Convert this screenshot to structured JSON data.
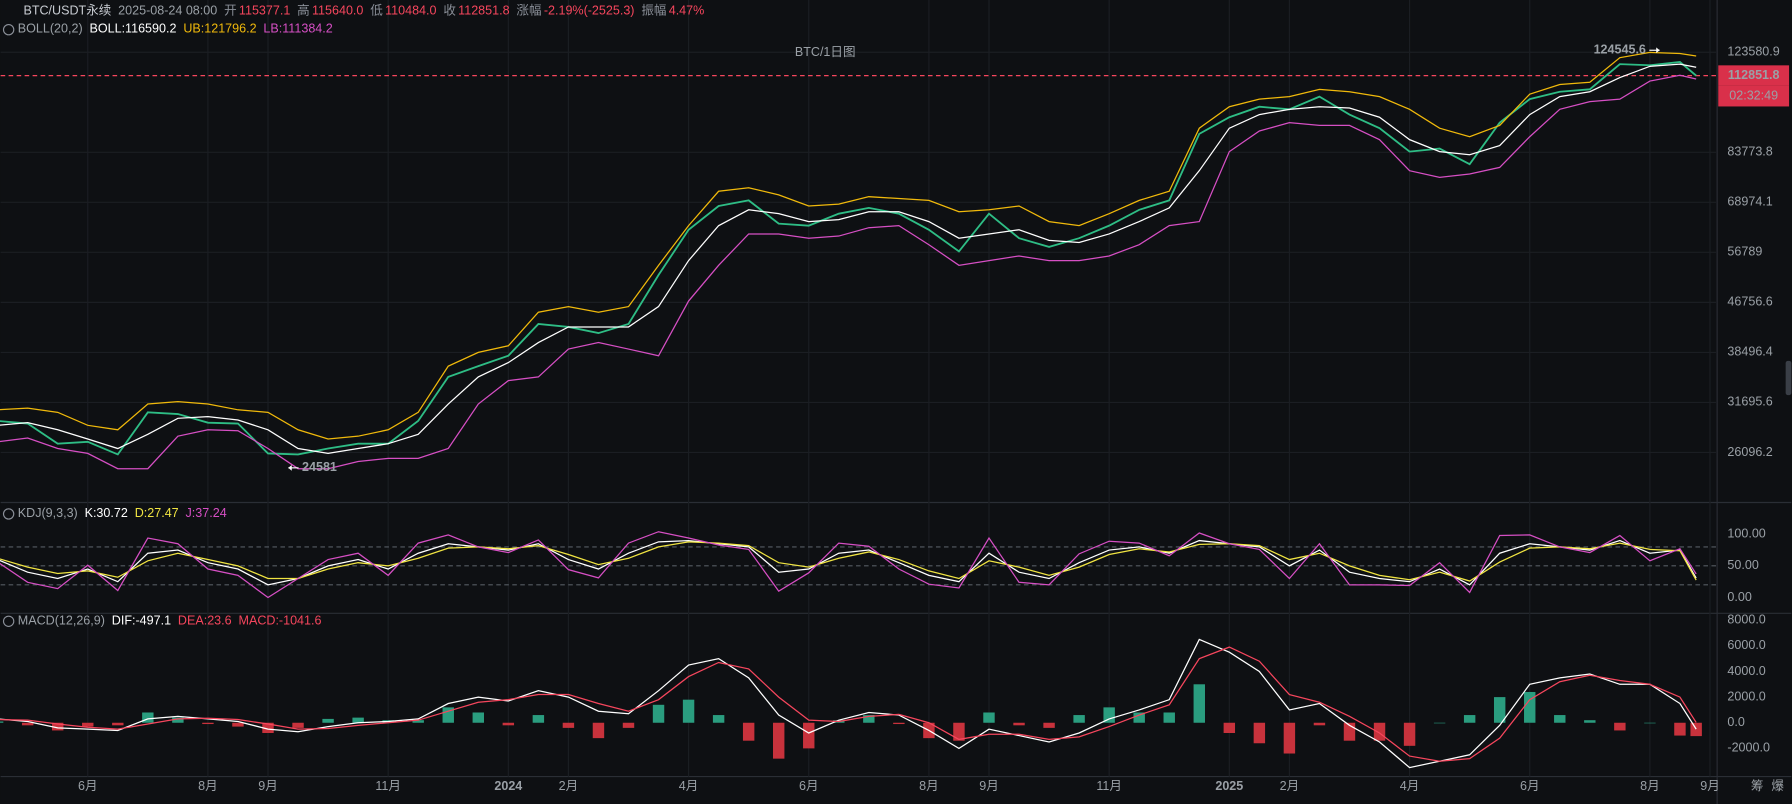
{
  "header": {
    "symbol": "BTC/USDT永续",
    "time": "2025-08-24 08:00",
    "fields": [
      {
        "label": "开",
        "value": "115377.1"
      },
      {
        "label": "高",
        "value": "115640.0"
      },
      {
        "label": "低",
        "value": "110484.0"
      },
      {
        "label": "收",
        "value": "112851.8"
      },
      {
        "label": "涨幅",
        "value": "-2.19%(-2525.3)"
      },
      {
        "label": "振幅",
        "value": "4.47%"
      }
    ]
  },
  "side_buttons": [
    "筹",
    "爆"
  ],
  "chart_data": [
    {
      "type": "line",
      "title": "BTC/1日图",
      "indicator": "BOLL(20,2)",
      "legend": [
        {
          "text": "BOLL:116590.2",
          "color": "#ffffff"
        },
        {
          "text": "UB:121796.2",
          "color": "#f0b90b"
        },
        {
          "text": "LB:111384.2",
          "color": "#d64fc4"
        }
      ],
      "log_scale": true,
      "grid": true,
      "x": [
        3.5,
        4,
        4.5,
        5,
        5.5,
        6,
        6.5,
        7,
        7.5,
        8,
        8.5,
        9,
        9.5,
        10,
        10.5,
        11,
        11.5,
        12,
        12.5,
        13,
        13.5,
        14,
        14.5,
        15,
        15.5,
        16,
        16.5,
        17,
        17.5,
        18,
        18.5,
        19,
        19.5,
        20,
        20.5,
        21,
        21.5,
        22,
        22.5,
        23,
        23.5,
        24,
        24.5,
        25,
        25.5,
        26,
        26.5,
        27,
        27.5,
        28,
        28.5,
        29,
        29.5,
        30,
        30.5,
        31,
        31.5,
        31.77
      ],
      "xlim": [
        3.55,
        32.1
      ],
      "xticks": [
        {
          "value": 5,
          "label": "6月"
        },
        {
          "value": 7,
          "label": "8月"
        },
        {
          "value": 8,
          "label": "9月"
        },
        {
          "value": 10,
          "label": "11月"
        },
        {
          "value": 12,
          "label": "2024"
        },
        {
          "value": 13,
          "label": "2月"
        },
        {
          "value": 15,
          "label": "4月"
        },
        {
          "value": 17,
          "label": "6月"
        },
        {
          "value": 19,
          "label": "8月"
        },
        {
          "value": 20,
          "label": "9月"
        },
        {
          "value": 22,
          "label": "11月"
        },
        {
          "value": 24,
          "label": "2025"
        },
        {
          "value": 25,
          "label": "2月"
        },
        {
          "value": 27,
          "label": "4月"
        },
        {
          "value": 29,
          "label": "6月"
        },
        {
          "value": 31,
          "label": "8月"
        },
        {
          "value": 32,
          "label": "9月"
        }
      ],
      "ylim": [
        21485,
        151400
      ],
      "yticks": [
        123580.9,
        83773.8,
        68974.1,
        56789.0,
        46756.6,
        38496.4,
        31695.6,
        26096.2
      ],
      "series": [
        {
          "color": "#2ebd85",
          "values": [
            29500,
            29200,
            27000,
            27200,
            25900,
            30500,
            30300,
            29300,
            29200,
            26000,
            25900,
            26500,
            27000,
            27000,
            29500,
            35000,
            36500,
            38000,
            43000,
            42500,
            41500,
            43000,
            52000,
            62000,
            68000,
            69500,
            63500,
            63000,
            66000,
            67500,
            66000,
            62000,
            57000,
            66000,
            60000,
            58000,
            60000,
            63000,
            67000,
            69500,
            90000,
            96000,
            100000,
            99000,
            104000,
            97000,
            92000,
            84000,
            85000,
            80000,
            94000,
            103000,
            106000,
            107000,
            118000,
            117500,
            119000,
            112851.8
          ]
        },
        {
          "color": "#ffffff",
          "values": [
            29000,
            29300,
            28500,
            27500,
            26500,
            28000,
            29800,
            30000,
            29600,
            28500,
            26500,
            26000,
            26500,
            27000,
            28000,
            31500,
            35000,
            37000,
            40000,
            42500,
            42500,
            42500,
            46000,
            55000,
            63000,
            67000,
            66000,
            64000,
            64500,
            66500,
            66500,
            64000,
            60000,
            61000,
            62000,
            59500,
            59000,
            61000,
            64000,
            67500,
            78000,
            92000,
            97000,
            99000,
            100000,
            99500,
            96000,
            88000,
            84000,
            83000,
            86000,
            97000,
            104000,
            106000,
            112000,
            117000,
            118000,
            116590.2
          ]
        },
        {
          "color": "#f0b90b",
          "values": [
            30800,
            31000,
            30500,
            29000,
            28500,
            31500,
            31800,
            31500,
            30800,
            30500,
            28500,
            27500,
            27800,
            28500,
            30500,
            36500,
            38500,
            39500,
            45000,
            46000,
            45000,
            46000,
            54000,
            63000,
            72000,
            73000,
            71000,
            68000,
            68500,
            70500,
            70000,
            69500,
            66500,
            67000,
            68000,
            64000,
            63000,
            66000,
            69500,
            72000,
            92000,
            100000,
            103000,
            104000,
            107000,
            106000,
            104000,
            99000,
            92000,
            89000,
            93000,
            105000,
            109000,
            110000,
            121000,
            123500,
            123000,
            121796.2
          ]
        },
        {
          "color": "#d64fc4",
          "values": [
            27200,
            27600,
            26500,
            26000,
            24500,
            24500,
            27800,
            28500,
            28400,
            26500,
            24500,
            24500,
            25200,
            25500,
            25500,
            26500,
            31500,
            34500,
            35000,
            39000,
            40000,
            39000,
            38000,
            47000,
            54000,
            61000,
            61000,
            60000,
            60500,
            62500,
            63000,
            58500,
            54000,
            55000,
            56000,
            55000,
            55000,
            56000,
            58500,
            63000,
            64000,
            84000,
            91000,
            94000,
            93000,
            93000,
            88000,
            78000,
            76000,
            77000,
            79000,
            89000,
            99000,
            102000,
            103000,
            110500,
            113000,
            111384.2
          ]
        }
      ],
      "annotations": [
        {
          "x": 31.2,
          "value": 124545.6,
          "arrow": "right"
        },
        {
          "x": 8.3,
          "value": 24581.0,
          "arrow": "left"
        }
      ],
      "last_price": 112851.8,
      "countdown": "02:32:49"
    },
    {
      "type": "line",
      "indicator": "KDJ(9,3,3)",
      "legend": [
        {
          "text": "K:30.72",
          "color": "#ffffff"
        },
        {
          "text": "D:27.47",
          "color": "#f0e442"
        },
        {
          "text": "J:37.24",
          "color": "#d64fc4"
        }
      ],
      "grid": false,
      "ylim": [
        -25,
        143
      ],
      "yticks": [
        {
          "value": 100,
          "label": "100.00"
        },
        {
          "value": 50,
          "label": "50.00"
        },
        {
          "value": 0,
          "label": "0.00"
        }
      ],
      "levels": [
        80,
        50,
        20
      ],
      "series": [
        {
          "color": "#ffffff",
          "values": [
            60,
            40,
            30,
            45,
            25,
            70,
            75,
            55,
            45,
            20,
            30,
            50,
            60,
            45,
            70,
            85,
            80,
            75,
            85,
            60,
            45,
            70,
            88,
            90,
            85,
            80,
            40,
            45,
            70,
            75,
            55,
            35,
            25,
            70,
            40,
            30,
            55,
            75,
            80,
            70,
            90,
            85,
            80,
            50,
            75,
            40,
            30,
            25,
            45,
            20,
            70,
            85,
            80,
            75,
            90,
            70,
            75,
            30.72
          ]
        },
        {
          "color": "#f0e442",
          "values": [
            62,
            48,
            38,
            42,
            32,
            58,
            70,
            60,
            50,
            30,
            30,
            45,
            55,
            50,
            62,
            78,
            80,
            77,
            82,
            68,
            52,
            62,
            80,
            88,
            86,
            82,
            55,
            48,
            62,
            72,
            60,
            42,
            30,
            58,
            48,
            35,
            48,
            68,
            77,
            72,
            84,
            85,
            82,
            60,
            70,
            50,
            35,
            28,
            40,
            26,
            56,
            78,
            80,
            77,
            86,
            76,
            74,
            27.47
          ]
        },
        {
          "color": "#d64fc4",
          "values": [
            56,
            24,
            14,
            51,
            11,
            94,
            85,
            45,
            35,
            0,
            30,
            60,
            70,
            35,
            86,
            99,
            80,
            71,
            91,
            44,
            31,
            86,
            104,
            94,
            83,
            76,
            10,
            39,
            86,
            81,
            45,
            21,
            15,
            94,
            24,
            20,
            69,
            89,
            86,
            66,
            102,
            85,
            76,
            30,
            85,
            20,
            20,
            19,
            55,
            8,
            98,
            99,
            80,
            71,
            98,
            58,
            77,
            37.24
          ]
        }
      ]
    },
    {
      "type": "line",
      "indicator": "MACD(12,26,9)",
      "legend": [
        {
          "text": "DIF:-497.1",
          "color": "#ffffff"
        },
        {
          "text": "DEA:23.6",
          "color": "#f6465d"
        },
        {
          "text": "MACD:-1041.6",
          "color": "#f6465d"
        }
      ],
      "grid": false,
      "ylim": [
        -4200,
        8450
      ],
      "yticks": [
        {
          "value": 8000,
          "label": "8000.0"
        },
        {
          "value": 6000,
          "label": "6000.0"
        },
        {
          "value": 4000,
          "label": "4000.0"
        },
        {
          "value": 2000,
          "label": "2000.0"
        },
        {
          "value": 0,
          "label": "0.0"
        },
        {
          "value": -2000,
          "label": "-2000.0"
        }
      ],
      "series": [
        {
          "style": "bar",
          "up_color": "#2a9d7f",
          "down_color": "#c8323c",
          "values": [
            100,
            -200,
            -600,
            -300,
            -200,
            800,
            400,
            -100,
            -300,
            -800,
            -400,
            300,
            400,
            200,
            200,
            1200,
            800,
            -200,
            600,
            -400,
            -1200,
            -400,
            1400,
            1800,
            600,
            -1400,
            -2800,
            -2000,
            200,
            600,
            -100,
            -1200,
            -1400,
            800,
            -200,
            -400,
            600,
            1200,
            800,
            800,
            3000,
            -800,
            -1600,
            -2400,
            -200,
            -1400,
            -1400,
            -1800,
            0,
            600,
            2000,
            2400,
            600,
            200,
            -600,
            0,
            -1000,
            -1041.6
          ]
        },
        {
          "color": "#ffffff",
          "values": [
            300,
            100,
            -400,
            -500,
            -600,
            300,
            500,
            300,
            100,
            -500,
            -700,
            -300,
            0,
            100,
            300,
            1500,
            2000,
            1700,
            2500,
            2000,
            900,
            700,
            2500,
            4500,
            5000,
            3500,
            600,
            -800,
            200,
            800,
            600,
            -600,
            -2000,
            -500,
            -1000,
            -1500,
            -800,
            300,
            1000,
            1800,
            6500,
            5500,
            4000,
            1000,
            1500,
            -200,
            -1500,
            -3500,
            -3000,
            -2500,
            -200,
            3000,
            3500,
            3800,
            3000,
            3000,
            1500,
            -497.1
          ]
        },
        {
          "color": "#f6465d",
          "values": [
            250,
            200,
            -100,
            -350,
            -500,
            -100,
            300,
            350,
            250,
            -100,
            -500,
            -450,
            -200,
            0,
            200,
            900,
            1600,
            1800,
            2200,
            2200,
            1500,
            900,
            1800,
            3600,
            4700,
            4200,
            2000,
            200,
            100,
            500,
            650,
            0,
            -1300,
            -900,
            -900,
            -1300,
            -1100,
            -300,
            600,
            1400,
            5000,
            5900,
            4800,
            2200,
            1600,
            500,
            -800,
            -2600,
            -3000,
            -2800,
            -1200,
            1800,
            3200,
            3700,
            3300,
            3000,
            2000,
            23.6
          ]
        }
      ]
    }
  ]
}
